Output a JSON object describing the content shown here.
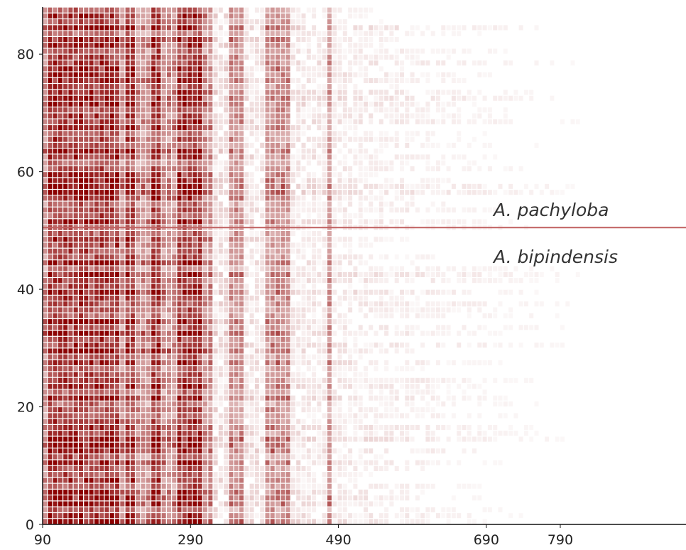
{
  "chart_data": {
    "type": "heatmap",
    "title": "",
    "xlabel": "",
    "ylabel": "",
    "xlim": [
      90,
      960
    ],
    "ylim": [
      0,
      88
    ],
    "x_ticks": [
      90,
      290,
      490,
      690,
      790
    ],
    "y_ticks": [
      0,
      20,
      40,
      60,
      80
    ],
    "n_rows": 88,
    "color_low": "#ffffff",
    "color_high": "#8b0000",
    "divider": {
      "y": 50.5,
      "color": "#c06060"
    },
    "groups": [
      {
        "label": "A. pachyloba",
        "rows": [
          51,
          88
        ]
      },
      {
        "label": "A. bipindensis",
        "rows": [
          1,
          50
        ]
      }
    ],
    "high_intensity_x_bands": [
      [
        95,
        120
      ],
      [
        125,
        140
      ],
      [
        145,
        155
      ],
      [
        160,
        175
      ],
      [
        180,
        190
      ],
      [
        200,
        210
      ],
      [
        235,
        245
      ],
      [
        268,
        300
      ],
      [
        340,
        360
      ],
      [
        390,
        420
      ],
      [
        470,
        480
      ]
    ],
    "dense_region_x": [
      90,
      320
    ],
    "fade_region_x": [
      320,
      880
    ]
  },
  "colors": {
    "axis": "#111111",
    "divider": "#c06060",
    "heat": "#8b0000"
  }
}
